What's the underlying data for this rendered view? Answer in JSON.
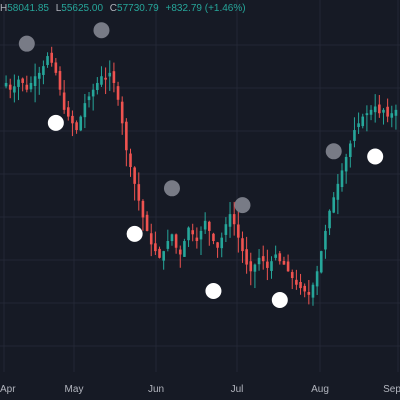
{
  "legend": {
    "h_label": "H",
    "h_value": "58041.85",
    "l_label": "L",
    "l_value": "55625.00",
    "c_label": "C",
    "c_value": "57730.79",
    "change": "+832.79 (+1.46%)"
  },
  "colors": {
    "background": "#161a25",
    "grid": "#232735",
    "up": "#26a69a",
    "down": "#ef5350",
    "text": "#b2b5be",
    "marker_high": "#787b86",
    "marker_low": "#ffffff"
  },
  "chart_data": {
    "type": "candlestick",
    "x_tick_labels": [
      "Apr",
      "May",
      "Jun",
      "Jul",
      "Aug",
      "Sep"
    ],
    "grid": true,
    "candles_relative_close_path": [
      0.8,
      0.78,
      0.79,
      0.81,
      0.8,
      0.78,
      0.8,
      0.82,
      0.83,
      0.85,
      0.88,
      0.86,
      0.83,
      0.78,
      0.72,
      0.7,
      0.68,
      0.66,
      0.7,
      0.74,
      0.76,
      0.78,
      0.8,
      0.82,
      0.81,
      0.83,
      0.8,
      0.75,
      0.68,
      0.6,
      0.55,
      0.5,
      0.45,
      0.4,
      0.36,
      0.32,
      0.3,
      0.28,
      0.3,
      0.33,
      0.35,
      0.31,
      0.29,
      0.33,
      0.37,
      0.35,
      0.33,
      0.36,
      0.39,
      0.36,
      0.33,
      0.31,
      0.34,
      0.38,
      0.41,
      0.38,
      0.34,
      0.3,
      0.26,
      0.24,
      0.26,
      0.28,
      0.27,
      0.25,
      0.27,
      0.29,
      0.27,
      0.26,
      0.24,
      0.22,
      0.2,
      0.19,
      0.18,
      0.17,
      0.2,
      0.24,
      0.3,
      0.36,
      0.42,
      0.46,
      0.5,
      0.54,
      0.58,
      0.62,
      0.66,
      0.68,
      0.7,
      0.71,
      0.72,
      0.73,
      0.71,
      0.72,
      0.7,
      0.71,
      0.72
    ],
    "swing_high_markers": [
      {
        "candle_index": 5,
        "label": ""
      },
      {
        "candle_index": 23,
        "label": ""
      },
      {
        "candle_index": 40,
        "label": ""
      },
      {
        "candle_index": 57,
        "label": ""
      },
      {
        "candle_index": 79,
        "label": ""
      }
    ],
    "swing_low_markers": [
      {
        "candle_index": 12,
        "label": ""
      },
      {
        "candle_index": 31,
        "label": ""
      },
      {
        "candle_index": 50,
        "label": ""
      },
      {
        "candle_index": 66,
        "label": ""
      },
      {
        "candle_index": 89,
        "label": ""
      }
    ]
  }
}
